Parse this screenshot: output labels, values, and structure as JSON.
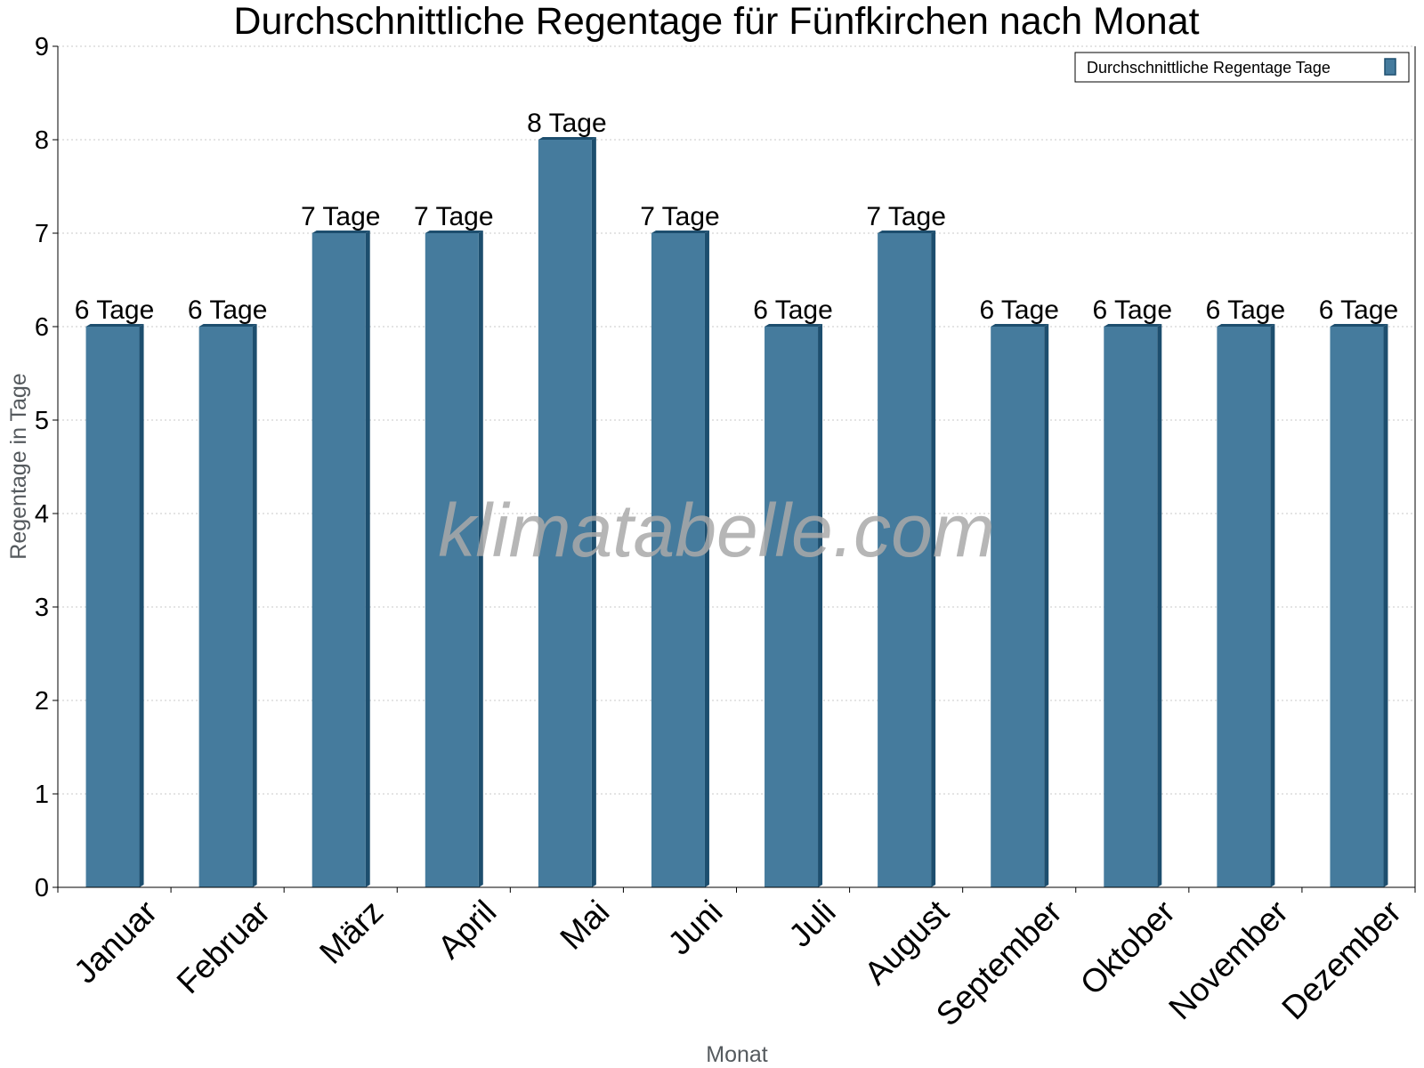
{
  "chart_data": {
    "type": "bar",
    "title": "Durchschnittliche Regentage für Fünfkirchen nach Monat",
    "xlabel": "Monat",
    "ylabel": "Regentage in Tage",
    "ylim": [
      0,
      9
    ],
    "yticks": [
      "0",
      "1",
      "2",
      "3",
      "4",
      "5",
      "6",
      "7",
      "8",
      "9"
    ],
    "grid": true,
    "legend_position": "top-right",
    "categories": [
      "Januar",
      "Februar",
      "März",
      "April",
      "Mai",
      "Juni",
      "Juli",
      "August",
      "September",
      "Oktober",
      "November",
      "Dezember"
    ],
    "series": [
      {
        "name": "Durchschnittliche Regentage Tage",
        "values": [
          6,
          6,
          7,
          7,
          8,
          7,
          6,
          7,
          6,
          6,
          6,
          6
        ],
        "labels": [
          "6 Tage",
          "6 Tage",
          "7 Tage",
          "7 Tage",
          "8 Tage",
          "7 Tage",
          "6 Tage",
          "7 Tage",
          "6 Tage",
          "6 Tage",
          "6 Tage",
          "6 Tage"
        ],
        "color": "#457b9d",
        "shade_color": "#1d4e6e"
      }
    ],
    "watermark": "klimatabelle.com"
  }
}
